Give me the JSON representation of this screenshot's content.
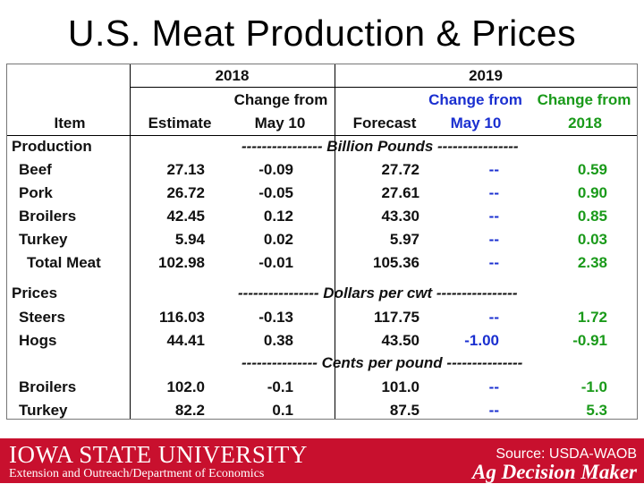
{
  "title": "U.S. Meat Production & Prices",
  "header": {
    "year2018": "2018",
    "year2019": "2019",
    "change_from_1": "Change from",
    "change_from_2": "Change from",
    "change_from_3": "Change from",
    "item": "Item",
    "estimate": "Estimate",
    "may10_a": "May 10",
    "forecast": "Forecast",
    "may10_b": "May 10",
    "col2018": "2018"
  },
  "sections": {
    "production": "Production",
    "prices": "Prices"
  },
  "units": {
    "billion_pounds": "---------------- Billion Pounds ----------------",
    "dollars_cwt": "---------------- Dollars per cwt ----------------",
    "cents_pound": "--------------- Cents per pound ---------------"
  },
  "rows": [
    {
      "item": "Beef",
      "estimate": "27.13",
      "change18": "-0.09",
      "forecast": "27.72",
      "change_may": "--",
      "change_2018": "0.59"
    },
    {
      "item": "Pork",
      "estimate": "26.72",
      "change18": "-0.05",
      "forecast": "27.61",
      "change_may": "--",
      "change_2018": "0.90"
    },
    {
      "item": "Broilers",
      "estimate": "42.45",
      "change18": "0.12",
      "forecast": "43.30",
      "change_may": "--",
      "change_2018": "0.85"
    },
    {
      "item": "Turkey",
      "estimate": "5.94",
      "change18": "0.02",
      "forecast": "5.97",
      "change_may": "--",
      "change_2018": "0.03"
    },
    {
      "item": "Total Meat",
      "estimate": "102.98",
      "change18": "-0.01",
      "forecast": "105.36",
      "change_may": "--",
      "change_2018": "2.38"
    },
    {
      "item": "Steers",
      "estimate": "116.03",
      "change18": "-0.13",
      "forecast": "117.75",
      "change_may": "--",
      "change_2018": "1.72"
    },
    {
      "item": "Hogs",
      "estimate": "44.41",
      "change18": "0.38",
      "forecast": "43.50",
      "change_may": "-1.00",
      "change_2018": "-0.91"
    },
    {
      "item": "Broilers",
      "estimate": "102.0",
      "change18": "-0.1",
      "forecast": "101.0",
      "change_may": "--",
      "change_2018": "-1.0"
    },
    {
      "item": "Turkey",
      "estimate": "82.2",
      "change18": "0.1",
      "forecast": "87.5",
      "change_may": "--",
      "change_2018": "5.3"
    }
  ],
  "footer": {
    "university": "IOWA STATE UNIVERSITY",
    "extension": "Extension and Outreach/Department of Economics",
    "source": "Source: USDA-WAOB",
    "brand": "Ag Decision Maker"
  },
  "colors": {
    "may10_change": "#1a2fd0",
    "change_2018": "#1a9a1a",
    "footer_bg": "#c8102e"
  }
}
